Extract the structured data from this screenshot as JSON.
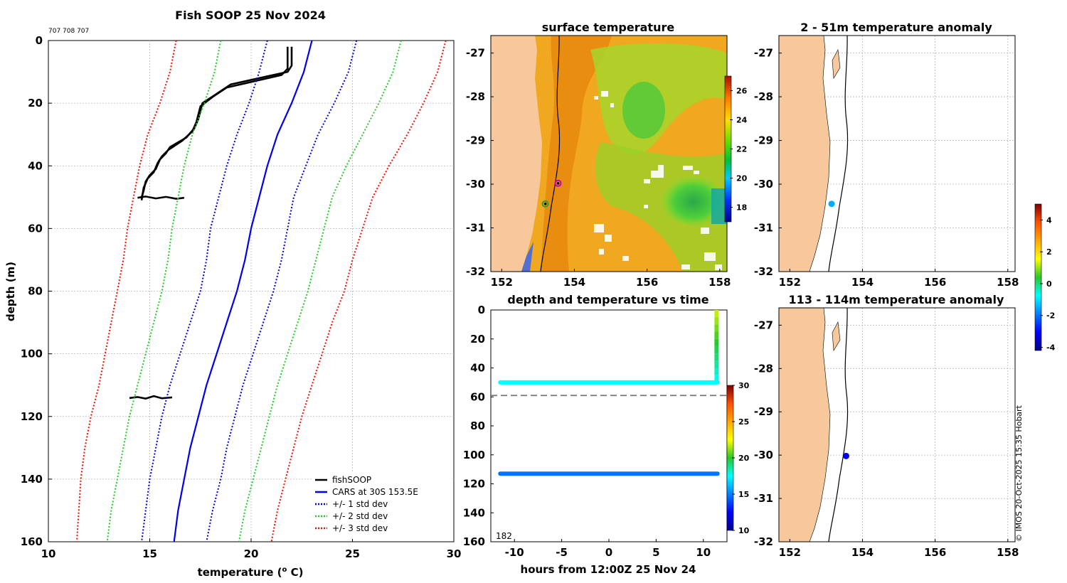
{
  "colors": {
    "fishsoop": "#000000",
    "cars": "#0000ee",
    "std1": "#0000dd",
    "std2": "#22cc22",
    "std3": "#ee1100",
    "land": "#f7c89b",
    "background": "#ffffff"
  },
  "chart_data": [
    {
      "id": "profile",
      "type": "line",
      "title": "Fish SOOP 25 Nov 2024",
      "subtitle": "707 708 707",
      "xlabel": "temperature (",
      "xlabel_sup": "o",
      "xlabel_end": " C)",
      "ylabel": "depth (m)",
      "xlim": [
        10,
        30
      ],
      "ylim": [
        0,
        160
      ],
      "y_reversed": true,
      "xticks": [
        "10",
        "15",
        "20",
        "25",
        "30"
      ],
      "yticks": [
        "0",
        "20",
        "40",
        "60",
        "80",
        "100",
        "120",
        "140",
        "160"
      ],
      "legend": {
        "position": "bottom-right",
        "entries": [
          "fishSOOP",
          "CARS at 30S 153.5E",
          "+/- 1 std dev",
          "+/- 2 std dev",
          "+/- 3 std dev"
        ]
      },
      "series": [
        {
          "name": "fishSOOP cast 1",
          "kind": "fishsoop",
          "points": [
            [
              22,
              2
            ],
            [
              22,
              8
            ],
            [
              21.8,
              10
            ],
            [
              19,
              14
            ],
            [
              18.3,
              17
            ],
            [
              17.6,
              20
            ],
            [
              17.4,
              25
            ],
            [
              17.2,
              28
            ],
            [
              16.8,
              31
            ],
            [
              16.0,
              34
            ],
            [
              15.8,
              36
            ],
            [
              15.5,
              38
            ],
            [
              15.3,
              41
            ],
            [
              15.0,
              43
            ],
            [
              14.8,
              45
            ],
            [
              14.7,
              48
            ],
            [
              14.6,
              50
            ]
          ]
        },
        {
          "name": "fishSOOP cast 2",
          "kind": "fishsoop",
          "points": [
            [
              21.8,
              2
            ],
            [
              21.8,
              9
            ],
            [
              21.5,
              11
            ],
            [
              18.8,
              15
            ],
            [
              18.1,
              18
            ],
            [
              17.5,
              21
            ],
            [
              17.3,
              26
            ],
            [
              17.1,
              29
            ],
            [
              16.6,
              32
            ],
            [
              15.9,
              35
            ],
            [
              15.6,
              37
            ],
            [
              15.4,
              39
            ],
            [
              15.2,
              42
            ],
            [
              14.9,
              44
            ],
            [
              14.7,
              47
            ],
            [
              14.6,
              51
            ]
          ]
        },
        {
          "name": "fishSOOP blob 50m",
          "kind": "fishsoop",
          "points": [
            [
              14.4,
              50.2
            ],
            [
              14.8,
              49.8
            ],
            [
              15.3,
              50.4
            ],
            [
              15.8,
              49.9
            ],
            [
              16.3,
              50.5
            ],
            [
              16.7,
              50.2
            ]
          ]
        },
        {
          "name": "fishSOOP blob 114m",
          "kind": "fishsoop",
          "points": [
            [
              14.0,
              114.1
            ],
            [
              14.4,
              113.8
            ],
            [
              14.8,
              114.3
            ],
            [
              15.2,
              113.5
            ],
            [
              15.6,
              114.2
            ],
            [
              16.1,
              113.9
            ]
          ]
        },
        {
          "name": "CARS at 30S 153.5E",
          "kind": "cars",
          "points": [
            [
              23,
              0
            ],
            [
              22.6,
              10
            ],
            [
              22.0,
              20
            ],
            [
              21.3,
              30
            ],
            [
              20.8,
              40
            ],
            [
              20.4,
              50
            ],
            [
              20.0,
              60
            ],
            [
              19.7,
              70
            ],
            [
              19.3,
              80
            ],
            [
              18.8,
              90
            ],
            [
              18.3,
              100
            ],
            [
              17.8,
              110
            ],
            [
              17.4,
              120
            ],
            [
              17.0,
              130
            ],
            [
              16.7,
              140
            ],
            [
              16.4,
              150
            ],
            [
              16.2,
              160
            ]
          ]
        },
        {
          "name": "+/- 1 std dev (upper)",
          "kind": "std1",
          "points": [
            [
              25.2,
              0
            ],
            [
              24.8,
              10
            ],
            [
              24.1,
              20
            ],
            [
              23.3,
              30
            ],
            [
              22.7,
              40
            ],
            [
              22.1,
              50
            ],
            [
              21.8,
              60
            ],
            [
              21.5,
              70
            ],
            [
              21.1,
              80
            ],
            [
              20.6,
              90
            ],
            [
              20.1,
              100
            ],
            [
              19.6,
              110
            ],
            [
              19.2,
              120
            ],
            [
              18.8,
              130
            ],
            [
              18.5,
              140
            ],
            [
              18.1,
              150
            ],
            [
              17.8,
              160
            ]
          ]
        },
        {
          "name": "+/- 1 std dev (lower)",
          "kind": "std1",
          "points": [
            [
              20.8,
              0
            ],
            [
              20.4,
              10
            ],
            [
              19.9,
              20
            ],
            [
              19.3,
              30
            ],
            [
              18.8,
              40
            ],
            [
              18.4,
              50
            ],
            [
              18.0,
              60
            ],
            [
              17.8,
              70
            ],
            [
              17.5,
              80
            ],
            [
              17.0,
              90
            ],
            [
              16.5,
              100
            ],
            [
              16.0,
              110
            ],
            [
              15.6,
              120
            ],
            [
              15.3,
              130
            ],
            [
              15.0,
              140
            ],
            [
              14.8,
              150
            ],
            [
              14.6,
              160
            ]
          ]
        },
        {
          "name": "+/- 2 std dev (upper)",
          "kind": "std2",
          "points": [
            [
              27.4,
              0
            ],
            [
              27.0,
              10
            ],
            [
              26.3,
              20
            ],
            [
              25.5,
              30
            ],
            [
              24.7,
              40
            ],
            [
              24.0,
              50
            ],
            [
              23.6,
              60
            ],
            [
              23.2,
              70
            ],
            [
              22.8,
              80
            ],
            [
              22.3,
              90
            ],
            [
              21.8,
              100
            ],
            [
              21.3,
              110
            ],
            [
              20.9,
              120
            ],
            [
              20.5,
              130
            ],
            [
              20.1,
              140
            ],
            [
              19.7,
              150
            ],
            [
              19.4,
              160
            ]
          ]
        },
        {
          "name": "+/- 2 std dev (lower)",
          "kind": "std2",
          "points": [
            [
              18.5,
              0
            ],
            [
              18.2,
              10
            ],
            [
              17.7,
              20
            ],
            [
              17.1,
              30
            ],
            [
              16.7,
              40
            ],
            [
              16.4,
              50
            ],
            [
              16.1,
              60
            ],
            [
              15.9,
              70
            ],
            [
              15.6,
              80
            ],
            [
              15.2,
              90
            ],
            [
              14.8,
              100
            ],
            [
              14.4,
              110
            ],
            [
              14.0,
              120
            ],
            [
              13.7,
              130
            ],
            [
              13.4,
              140
            ],
            [
              13.1,
              150
            ],
            [
              12.9,
              160
            ]
          ]
        },
        {
          "name": "+/- 3 std dev (upper)",
          "kind": "std3",
          "points": [
            [
              29.6,
              0
            ],
            [
              29.2,
              10
            ],
            [
              28.5,
              20
            ],
            [
              27.7,
              30
            ],
            [
              26.8,
              40
            ],
            [
              26.0,
              50
            ],
            [
              25.5,
              60
            ],
            [
              25.0,
              70
            ],
            [
              24.6,
              80
            ],
            [
              24.0,
              90
            ],
            [
              23.5,
              100
            ],
            [
              23.0,
              110
            ],
            [
              22.5,
              120
            ],
            [
              22.1,
              130
            ],
            [
              21.7,
              140
            ],
            [
              21.3,
              150
            ],
            [
              21.0,
              160
            ]
          ]
        },
        {
          "name": "+/- 3 std dev (lower)",
          "kind": "std3",
          "points": [
            [
              16.3,
              0
            ],
            [
              16.0,
              10
            ],
            [
              15.5,
              20
            ],
            [
              14.9,
              30
            ],
            [
              14.5,
              40
            ],
            [
              14.2,
              50
            ],
            [
              13.9,
              60
            ],
            [
              13.7,
              70
            ],
            [
              13.4,
              80
            ],
            [
              13.1,
              90
            ],
            [
              12.8,
              100
            ],
            [
              12.5,
              110
            ],
            [
              12.1,
              120
            ],
            [
              11.8,
              130
            ],
            [
              11.6,
              140
            ],
            [
              11.5,
              150
            ],
            [
              11.4,
              160
            ]
          ]
        }
      ]
    },
    {
      "id": "sst",
      "type": "heatmap",
      "title": "surface temperature",
      "xlim": [
        151.7,
        158.2
      ],
      "ylim": [
        -32,
        -26.6
      ],
      "xticks": [
        "152",
        "154",
        "156",
        "158"
      ],
      "yticks": [
        "-27",
        "-28",
        "-29",
        "-30",
        "-31",
        "-32"
      ],
      "colorbar": {
        "range": [
          17,
          27
        ],
        "ticks": [
          "18",
          "20",
          "22",
          "24",
          "26"
        ]
      },
      "markers": [
        {
          "name": "position-magenta",
          "lon": 153.55,
          "lat": -29.98,
          "color": "#c400c4"
        },
        {
          "name": "position-green",
          "lon": 153.2,
          "lat": -30.45,
          "color": "#2ea02e"
        }
      ]
    },
    {
      "id": "timeseries",
      "type": "scatter",
      "title": "depth and temperature vs time",
      "xlabel": "hours from 12:00Z 25 Nov 24",
      "xlim": [
        -12.5,
        12.5
      ],
      "ylim": [
        0,
        160
      ],
      "y_reversed": true,
      "xticks": [
        "-10",
        "-5",
        "0",
        "5",
        "10"
      ],
      "yticks": [
        "0",
        "20",
        "40",
        "60",
        "80",
        "100",
        "120",
        "140",
        "160"
      ],
      "reference_depth": 59,
      "annotation": "182",
      "colorbar": {
        "range": [
          10,
          30
        ],
        "ticks": [
          "10",
          "15",
          "20",
          "25",
          "30"
        ]
      },
      "series": [
        {
          "name": "shallow logger",
          "depth": 50,
          "temperature": 17.5,
          "x_range": [
            -11.5,
            11.5
          ]
        },
        {
          "name": "deep logger",
          "depth": 113,
          "temperature": 14.8,
          "x_range": [
            -11.5,
            11.5
          ]
        },
        {
          "name": "descent",
          "x": 11.4,
          "depth_range": [
            0,
            50
          ],
          "temp_range": [
            22,
            17.5
          ]
        }
      ]
    },
    {
      "id": "anomaly_shallow",
      "type": "scatter",
      "title": "2 - 51m temperature anomaly",
      "xlim": [
        151.7,
        158.2
      ],
      "ylim": [
        -32,
        -26.6
      ],
      "xticks": [
        "152",
        "154",
        "156",
        "158"
      ],
      "yticks": [
        "-27",
        "-28",
        "-29",
        "-30",
        "-31",
        "-32"
      ],
      "points": [
        {
          "lon": 153.15,
          "lat": -30.45,
          "anomaly": -1.5
        }
      ]
    },
    {
      "id": "anomaly_deep",
      "type": "scatter",
      "title": "113 - 114m temperature anomaly",
      "xlim": [
        151.7,
        158.2
      ],
      "ylim": [
        -32,
        -26.6
      ],
      "xticks": [
        "152",
        "154",
        "156",
        "158"
      ],
      "yticks": [
        "-27",
        "-28",
        "-29",
        "-30",
        "-31",
        "-32"
      ],
      "points": [
        {
          "lon": 153.55,
          "lat": -30.02,
          "anomaly": -3.2
        }
      ],
      "colorbar": {
        "range": [
          -4.2,
          5
        ],
        "ticks": [
          "4",
          "2",
          "0",
          "-2",
          "-4"
        ]
      }
    }
  ],
  "credit": "© IMOS 20-Oct-2025 15:35 Hobart"
}
